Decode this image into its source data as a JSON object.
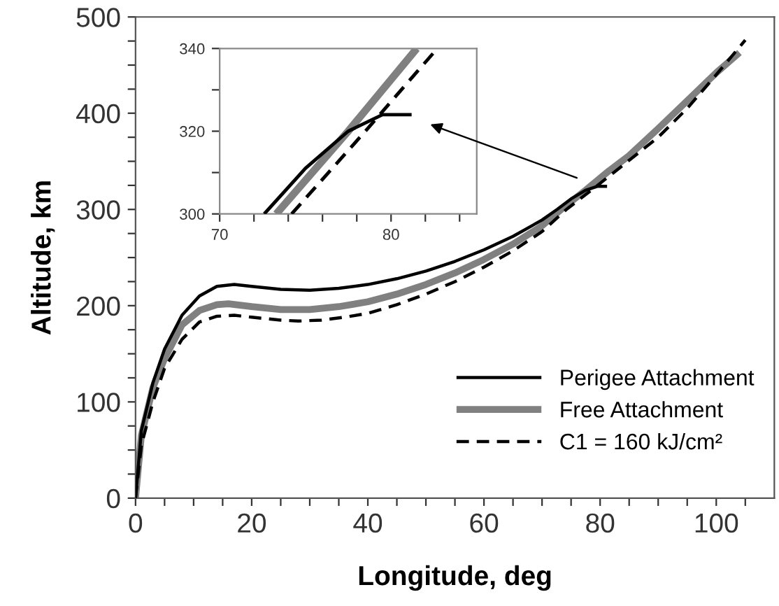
{
  "chart_data": [
    {
      "type": "line",
      "xlabel": "Longitude, deg",
      "ylabel": "Altitude, km",
      "xlim": [
        0,
        110
      ],
      "ylim": [
        0,
        500
      ],
      "xticks": [
        0,
        {
          "value": 5,
          "label": null
        },
        {
          "value": 10,
          "label": null
        },
        {
          "value": 15,
          "label": null
        },
        20,
        {
          "value": 25,
          "label": null
        },
        {
          "value": 30,
          "label": null
        },
        {
          "value": 35,
          "label": null
        },
        40,
        {
          "value": 45,
          "label": null
        },
        {
          "value": 50,
          "label": null
        },
        {
          "value": 55,
          "label": null
        },
        60,
        {
          "value": 65,
          "label": null
        },
        {
          "value": 70,
          "label": null
        },
        {
          "value": 75,
          "label": null
        },
        80,
        {
          "value": 85,
          "label": null
        },
        {
          "value": 90,
          "label": null
        },
        {
          "value": 95,
          "label": null
        },
        100,
        {
          "value": 105,
          "label": null
        }
      ],
      "yticks": [
        0,
        {
          "value": 25,
          "label": null
        },
        {
          "value": 50,
          "label": null
        },
        {
          "value": 75,
          "label": null
        },
        100,
        {
          "value": 125,
          "label": null
        },
        {
          "value": 150,
          "label": null
        },
        {
          "value": 175,
          "label": null
        },
        200,
        {
          "value": 225,
          "label": null
        },
        {
          "value": 250,
          "label": null
        },
        {
          "value": 275,
          "label": null
        },
        300,
        {
          "value": 325,
          "label": null
        },
        {
          "value": 350,
          "label": null
        },
        {
          "value": 375,
          "label": null
        },
        400,
        {
          "value": 425,
          "label": null
        },
        {
          "value": 450,
          "label": null
        },
        {
          "value": 475,
          "label": null
        },
        500
      ],
      "grid": false,
      "legend": "bottom right",
      "marker": "none",
      "series": [
        {
          "name": "Perigee Attachment",
          "color": "#000000",
          "line_style": "solid",
          "x": [
            0,
            1,
            3,
            5,
            8,
            11,
            14,
            17,
            20,
            25,
            30,
            35,
            40,
            45,
            50,
            55,
            60,
            65,
            70,
            72.6,
            75,
            77.5,
            78.5,
            79.5,
            81.2
          ],
          "values": [
            0,
            70,
            120,
            155,
            190,
            210,
            220,
            222,
            220,
            217,
            216,
            218,
            222,
            228,
            236,
            246,
            258,
            272,
            289,
            300,
            311,
            320,
            322,
            324,
            324
          ]
        },
        {
          "name": "Free Attachment",
          "color": "#808080",
          "line_style": "solid",
          "x": [
            0,
            1,
            3,
            5,
            8,
            11,
            14,
            16,
            20,
            25,
            30,
            35,
            40,
            45,
            50,
            55,
            60,
            65,
            70,
            73.3,
            77.5,
            81.5,
            85,
            90,
            95,
            100,
            104
          ],
          "values": [
            0,
            65,
            115,
            145,
            180,
            195,
            201,
            202,
            199,
            196,
            196,
            199,
            204,
            212,
            222,
            234,
            248,
            264,
            283,
            300,
            320,
            340,
            356,
            384,
            413,
            442,
            463
          ]
        },
        {
          "name": "C1 = 160 kJ/cm²",
          "color": "#000000",
          "line_style": "dashed",
          "x": [
            0,
            1,
            3,
            5,
            8,
            11,
            14,
            17,
            20,
            25,
            28,
            32,
            36,
            40,
            45,
            50,
            55,
            60,
            65,
            70,
            74.2,
            78.5,
            82.7,
            90,
            95,
            100,
            105
          ],
          "values": [
            0,
            55,
            100,
            135,
            165,
            183,
            189,
            190,
            188,
            185,
            184,
            185,
            188,
            192,
            201,
            212,
            225,
            240,
            257,
            277,
            300,
            320,
            340,
            375,
            405,
            440,
            476
          ]
        }
      ]
    },
    {
      "type": "line",
      "xlim": [
        70,
        85
      ],
      "ylim": [
        300,
        340
      ],
      "xticks": [
        70,
        {
          "value": 72,
          "label": null
        },
        {
          "value": 74,
          "label": null
        },
        {
          "value": 76,
          "label": null
        },
        {
          "value": 78,
          "label": null
        },
        80,
        {
          "value": 82,
          "label": null
        },
        {
          "value": 84,
          "label": null
        }
      ],
      "yticks": [
        300,
        {
          "value": 310,
          "label": null
        },
        320,
        {
          "value": 330,
          "label": null
        },
        340
      ],
      "grid": false,
      "legend": false,
      "marker": "none",
      "series": [
        {
          "color": "#000000",
          "line_style": "solid",
          "x": [
            72.6,
            75,
            77.5,
            78.5,
            79.5,
            81.2
          ],
          "values": [
            300,
            311,
            320,
            322,
            324,
            324
          ]
        },
        {
          "color": "#808080",
          "line_style": "solid",
          "x": [
            73.3,
            77.5,
            81.5
          ],
          "values": [
            300,
            320,
            340
          ]
        },
        {
          "color": "#000000",
          "line_style": "dashed",
          "x": [
            74.2,
            78.5,
            82.7
          ],
          "values": [
            300,
            320,
            340
          ]
        }
      ]
    }
  ]
}
